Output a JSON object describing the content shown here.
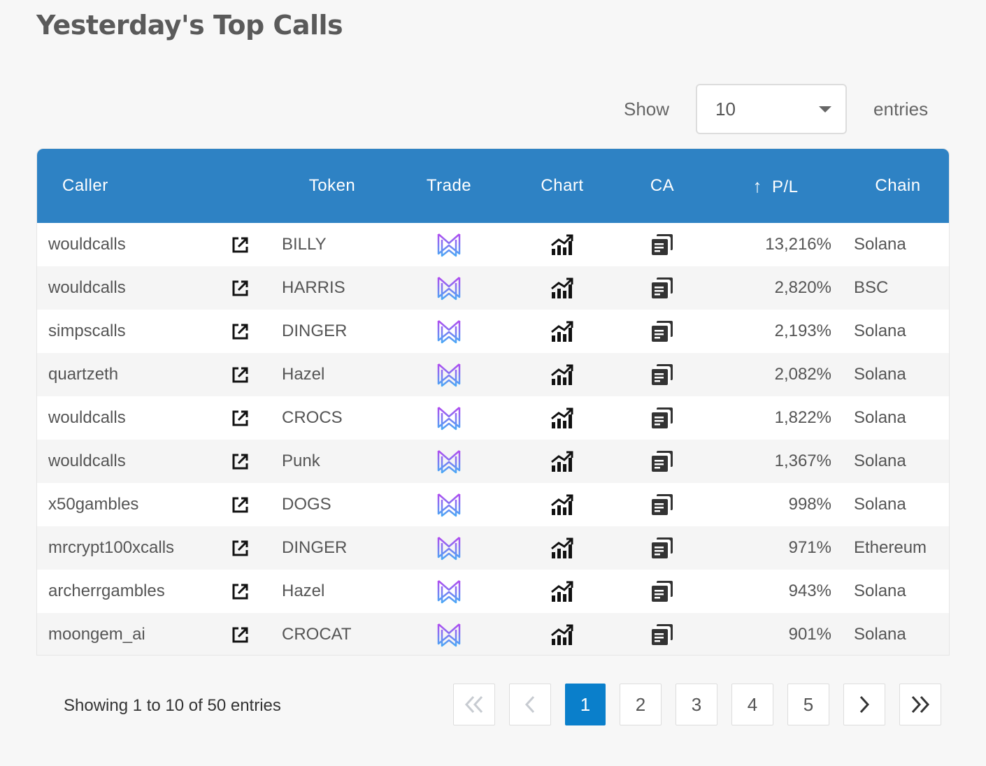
{
  "page": {
    "title": "Yesterday's Top Calls"
  },
  "length": {
    "show_label": "Show",
    "selected": "10",
    "entries_label": "entries"
  },
  "table": {
    "columns": {
      "caller": "Caller",
      "token": "Token",
      "trade": "Trade",
      "chart": "Chart",
      "ca": "CA",
      "sort_indicator": "↑",
      "pl": "P/L",
      "chain": "Chain"
    },
    "rows": [
      {
        "caller": "wouldcalls",
        "token": "BILLY",
        "pl": "13,216%",
        "chain": "Solana"
      },
      {
        "caller": "wouldcalls",
        "token": "HARRIS",
        "pl": "2,820%",
        "chain": "BSC"
      },
      {
        "caller": "simpscalls",
        "token": "DINGER",
        "pl": "2,193%",
        "chain": "Solana"
      },
      {
        "caller": "quartzeth",
        "token": "Hazel",
        "pl": "2,082%",
        "chain": "Solana"
      },
      {
        "caller": "wouldcalls",
        "token": "CROCS",
        "pl": "1,822%",
        "chain": "Solana"
      },
      {
        "caller": "wouldcalls",
        "token": "Punk",
        "pl": "1,367%",
        "chain": "Solana"
      },
      {
        "caller": "x50gambles",
        "token": "DOGS",
        "pl": "998%",
        "chain": "Solana"
      },
      {
        "caller": "mrcrypt100xcalls",
        "token": "DINGER",
        "pl": "971%",
        "chain": "Ethereum"
      },
      {
        "caller": "archerrgambles",
        "token": "Hazel",
        "pl": "943%",
        "chain": "Solana"
      },
      {
        "caller": "moongem_ai",
        "token": "CROCAT",
        "pl": "901%",
        "chain": "Solana"
      }
    ]
  },
  "footer": {
    "info": "Showing 1 to 10 of 50 entries",
    "pages": [
      "1",
      "2",
      "3",
      "4",
      "5"
    ],
    "current_page": "1"
  },
  "icons": {
    "caller_link": "external-link-icon",
    "trade": "trade-logo-icon",
    "chart": "bar-chart-icon",
    "ca": "copy-icon",
    "first": "double-chevron-left-icon",
    "prev": "chevron-left-icon",
    "next": "chevron-right-icon",
    "last": "double-chevron-right-icon"
  },
  "colors": {
    "header": "#2e82c4",
    "active_page": "#0a7fcb",
    "trade_logo_from": "#b14cf0",
    "trade_logo_to": "#4aa8f5"
  }
}
